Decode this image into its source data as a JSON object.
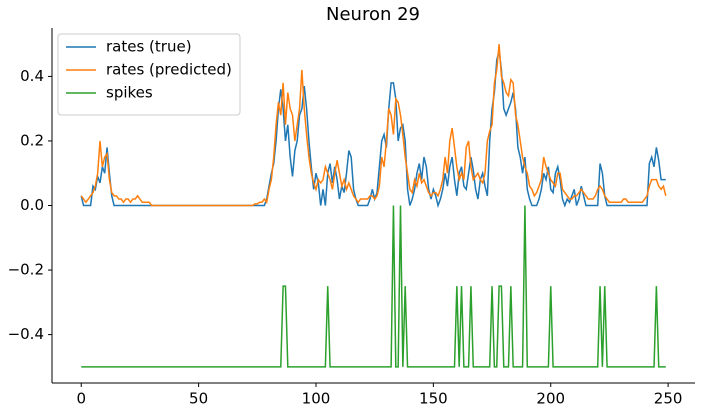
{
  "chart_data": {
    "type": "line",
    "title": "Neuron 29",
    "x": [
      0,
      1,
      2,
      3,
      4,
      5,
      6,
      7,
      8,
      9,
      10,
      11,
      12,
      13,
      14,
      15,
      16,
      17,
      18,
      19,
      20,
      21,
      22,
      23,
      24,
      25,
      26,
      27,
      28,
      29,
      30,
      31,
      32,
      33,
      34,
      35,
      36,
      37,
      38,
      39,
      40,
      41,
      42,
      43,
      44,
      45,
      46,
      47,
      48,
      49,
      50,
      51,
      52,
      53,
      54,
      55,
      56,
      57,
      58,
      59,
      60,
      61,
      62,
      63,
      64,
      65,
      66,
      67,
      68,
      69,
      70,
      71,
      72,
      73,
      74,
      75,
      76,
      77,
      78,
      79,
      80,
      81,
      82,
      83,
      84,
      85,
      86,
      87,
      88,
      89,
      90,
      91,
      92,
      93,
      94,
      95,
      96,
      97,
      98,
      99,
      100,
      101,
      102,
      103,
      104,
      105,
      106,
      107,
      108,
      109,
      110,
      111,
      112,
      113,
      114,
      115,
      116,
      117,
      118,
      119,
      120,
      121,
      122,
      123,
      124,
      125,
      126,
      127,
      128,
      129,
      130,
      131,
      132,
      133,
      134,
      135,
      136,
      137,
      138,
      139,
      140,
      141,
      142,
      143,
      144,
      145,
      146,
      147,
      148,
      149,
      150,
      151,
      152,
      153,
      154,
      155,
      156,
      157,
      158,
      159,
      160,
      161,
      162,
      163,
      164,
      165,
      166,
      167,
      168,
      169,
      170,
      171,
      172,
      173,
      174,
      175,
      176,
      177,
      178,
      179,
      180,
      181,
      182,
      183,
      184,
      185,
      186,
      187,
      188,
      189,
      190,
      191,
      192,
      193,
      194,
      195,
      196,
      197,
      198,
      199,
      200,
      201,
      202,
      203,
      204,
      205,
      206,
      207,
      208,
      209,
      210,
      211,
      212,
      213,
      214,
      215,
      216,
      217,
      218,
      219,
      220,
      221,
      222,
      223,
      224,
      225,
      226,
      227,
      228,
      229,
      230,
      231,
      232,
      233,
      234,
      235,
      236,
      237,
      238,
      239,
      240,
      241,
      242,
      243,
      244,
      245,
      246,
      247,
      248,
      249
    ],
    "series": [
      {
        "name": "rates (true)",
        "color": "#1f77b4",
        "values": [
          0.03,
          0,
          0,
          0,
          0,
          0.06,
          0.05,
          0.09,
          0.07,
          0.12,
          0.1,
          0.18,
          0.1,
          0.03,
          0,
          0,
          0,
          0,
          0,
          0,
          0,
          0,
          0,
          0,
          0,
          0,
          0,
          0,
          0,
          0,
          0,
          0,
          0,
          0,
          0,
          0,
          0,
          0,
          0,
          0,
          0,
          0,
          0,
          0,
          0,
          0,
          0,
          0,
          0,
          0,
          0,
          0,
          0,
          0,
          0,
          0,
          0,
          0,
          0,
          0,
          0,
          0,
          0,
          0,
          0,
          0,
          0,
          0,
          0,
          0,
          0,
          0,
          0,
          0,
          0,
          0,
          0,
          0,
          0,
          0.02,
          0.06,
          0.1,
          0.13,
          0.2,
          0.3,
          0.36,
          0.3,
          0.2,
          0.25,
          0.15,
          0.09,
          0.17,
          0.2,
          0.28,
          0.3,
          0.37,
          0.3,
          0.2,
          0.12,
          0.05,
          0.1,
          0.07,
          0,
          0.05,
          0,
          0.1,
          0.13,
          0.07,
          0.12,
          0.08,
          0.02,
          0.06,
          0.04,
          0.1,
          0.17,
          0.15,
          0.05,
          0.02,
          0,
          0,
          0,
          0,
          0,
          0.02,
          0.05,
          0.02,
          0.04,
          0.12,
          0.2,
          0.22,
          0.18,
          0.3,
          0.38,
          0.38,
          0.33,
          0.2,
          0.24,
          0.25,
          0.2,
          0.05,
          0,
          0.02,
          0.05,
          0.1,
          0.13,
          0.08,
          0.15,
          0.12,
          0.05,
          0.02,
          0.05,
          0.03,
          0,
          0.02,
          0.05,
          0.1,
          0.06,
          0.12,
          0.15,
          0.08,
          0.03,
          0.1,
          0.12,
          0.06,
          0.05,
          0.1,
          0.15,
          0.11,
          0.05,
          0.02,
          0.08,
          0.1,
          0.06,
          0.03,
          0.2,
          0.3,
          0.35,
          0.45,
          0.48,
          0.42,
          0.3,
          0.28,
          0.3,
          0.32,
          0.35,
          0.3,
          0.18,
          0.15,
          0.1,
          0.15,
          0.05,
          0.02,
          0,
          0,
          0,
          0.02,
          0.05,
          0.1,
          0.08,
          0.12,
          0.05,
          0.04,
          0.1,
          0.12,
          0.08,
          0.02,
          0,
          0.02,
          0.01,
          0.03,
          0.05,
          0,
          0.02,
          0.06,
          0.03,
          0,
          0,
          0,
          0,
          0,
          0,
          0.13,
          0.1,
          0.03,
          0,
          0,
          0,
          0,
          0,
          0,
          0,
          0,
          0,
          0,
          0,
          0,
          0,
          0,
          0,
          0,
          0,
          0,
          0.13,
          0.15,
          0.12,
          0.18,
          0.14,
          0.08,
          0.08,
          0.08
        ]
      },
      {
        "name": "rates (predicted)",
        "color": "#ff7f0e",
        "values": [
          0.03,
          0.02,
          0.01,
          0.02,
          0.03,
          0.04,
          0.06,
          0.1,
          0.2,
          0.12,
          0.15,
          0.16,
          0.08,
          0.04,
          0.03,
          0.03,
          0.02,
          0.02,
          0.01,
          0.02,
          0.02,
          0.01,
          0.02,
          0.02,
          0.03,
          0.02,
          0.01,
          0.01,
          0.01,
          0.01,
          0,
          0,
          0,
          0,
          0,
          0,
          0,
          0,
          0,
          0,
          0,
          0,
          0,
          0,
          0,
          0,
          0,
          0,
          0,
          0,
          0,
          0,
          0,
          0,
          0,
          0,
          0,
          0,
          0,
          0,
          0,
          0,
          0,
          0,
          0,
          0,
          0,
          0,
          0,
          0,
          0,
          0,
          0,
          0,
          0.005,
          0.005,
          0.01,
          0.01,
          0.02,
          0.01,
          0.05,
          0.08,
          0.15,
          0.25,
          0.32,
          0.28,
          0.38,
          0.25,
          0.35,
          0.3,
          0.28,
          0.2,
          0.25,
          0.3,
          0.42,
          0.3,
          0.22,
          0.15,
          0.1,
          0.07,
          0.05,
          0.08,
          0.07,
          0.08,
          0.12,
          0.1,
          0.08,
          0.05,
          0.1,
          0.14,
          0.1,
          0.06,
          0.08,
          0.05,
          0.07,
          0.05,
          0.03,
          0.02,
          0.01,
          0.02,
          0.02,
          0.02,
          0.02,
          0.03,
          0.03,
          0.02,
          0.03,
          0.06,
          0.15,
          0.12,
          0.2,
          0.3,
          0.28,
          0.22,
          0.33,
          0.32,
          0.28,
          0.22,
          0.15,
          0.1,
          0.05,
          0.04,
          0.08,
          0.06,
          0.1,
          0.07,
          0.08,
          0.06,
          0.04,
          0.03,
          0.04,
          0.04,
          0.03,
          0.05,
          0.08,
          0.15,
          0.1,
          0.2,
          0.24,
          0.18,
          0.12,
          0.08,
          0.1,
          0.08,
          0.18,
          0.2,
          0.12,
          0.08,
          0.09,
          0.1,
          0.08,
          0.07,
          0.1,
          0.2,
          0.23,
          0.25,
          0.38,
          0.42,
          0.5,
          0.4,
          0.38,
          0.35,
          0.34,
          0.39,
          0.38,
          0.28,
          0.25,
          0.2,
          0.15,
          0.12,
          0.1,
          0.06,
          0.05,
          0.03,
          0.04,
          0.06,
          0.08,
          0.15,
          0.12,
          0.1,
          0.08,
          0.07,
          0.06,
          0.1,
          0.1,
          0.05,
          0.04,
          0.03,
          0.02,
          0.02,
          0.03,
          0.03,
          0.04,
          0.05,
          0.04,
          0.03,
          0.02,
          0.02,
          0.02,
          0.03,
          0.05,
          0.06,
          0.05,
          0.03,
          0.02,
          0.01,
          0.01,
          0.01,
          0.01,
          0.01,
          0.01,
          0.02,
          0.02,
          0.01,
          0.01,
          0.01,
          0.01,
          0.01,
          0.01,
          0.01,
          0.02,
          0.03,
          0.06,
          0.08,
          0.08,
          0.08,
          0.06,
          0.05,
          0.06,
          0.03
        ]
      },
      {
        "name": "spikes",
        "color": "#2ca02c",
        "values": [
          -0.5,
          -0.5,
          -0.5,
          -0.5,
          -0.5,
          -0.5,
          -0.5,
          -0.5,
          -0.5,
          -0.5,
          -0.5,
          -0.5,
          -0.5,
          -0.5,
          -0.5,
          -0.5,
          -0.5,
          -0.5,
          -0.5,
          -0.5,
          -0.5,
          -0.5,
          -0.5,
          -0.5,
          -0.5,
          -0.5,
          -0.5,
          -0.5,
          -0.5,
          -0.5,
          -0.5,
          -0.5,
          -0.5,
          -0.5,
          -0.5,
          -0.5,
          -0.5,
          -0.5,
          -0.5,
          -0.5,
          -0.5,
          -0.5,
          -0.5,
          -0.5,
          -0.5,
          -0.5,
          -0.5,
          -0.5,
          -0.5,
          -0.5,
          -0.5,
          -0.5,
          -0.5,
          -0.5,
          -0.5,
          -0.5,
          -0.5,
          -0.5,
          -0.5,
          -0.5,
          -0.5,
          -0.5,
          -0.5,
          -0.5,
          -0.5,
          -0.5,
          -0.5,
          -0.5,
          -0.5,
          -0.5,
          -0.5,
          -0.5,
          -0.5,
          -0.5,
          -0.5,
          -0.5,
          -0.5,
          -0.5,
          -0.5,
          -0.5,
          -0.5,
          -0.5,
          -0.5,
          -0.5,
          -0.5,
          -0.5,
          -0.25,
          -0.25,
          -0.5,
          -0.5,
          -0.5,
          -0.5,
          -0.5,
          -0.5,
          -0.5,
          -0.5,
          -0.5,
          -0.5,
          -0.5,
          -0.5,
          -0.5,
          -0.5,
          -0.5,
          -0.5,
          -0.5,
          -0.25,
          -0.5,
          -0.5,
          -0.5,
          -0.5,
          -0.5,
          -0.5,
          -0.5,
          -0.5,
          -0.5,
          -0.5,
          -0.5,
          -0.5,
          -0.5,
          -0.5,
          -0.5,
          -0.5,
          -0.5,
          -0.5,
          -0.5,
          -0.5,
          -0.5,
          -0.5,
          -0.5,
          -0.5,
          -0.5,
          -0.5,
          -0.5,
          0,
          -0.5,
          -0.5,
          0,
          -0.5,
          -0.25,
          -0.5,
          -0.5,
          -0.5,
          -0.5,
          -0.5,
          -0.5,
          -0.5,
          -0.5,
          -0.5,
          -0.5,
          -0.5,
          -0.5,
          -0.5,
          -0.5,
          -0.5,
          -0.5,
          -0.5,
          -0.5,
          -0.5,
          -0.5,
          -0.5,
          -0.25,
          -0.5,
          -0.25,
          -0.5,
          -0.5,
          -0.5,
          -0.25,
          -0.5,
          -0.5,
          -0.5,
          -0.5,
          -0.5,
          -0.5,
          -0.5,
          -0.5,
          -0.25,
          -0.5,
          -0.5,
          -0.25,
          -0.25,
          -0.5,
          -0.5,
          -0.5,
          -0.25,
          -0.5,
          -0.5,
          -0.5,
          -0.5,
          -0.5,
          0,
          -0.5,
          -0.5,
          -0.5,
          -0.5,
          -0.5,
          -0.5,
          -0.5,
          -0.5,
          -0.5,
          -0.5,
          -0.25,
          -0.5,
          -0.5,
          -0.5,
          -0.5,
          -0.5,
          -0.5,
          -0.5,
          -0.5,
          -0.5,
          -0.5,
          -0.5,
          -0.5,
          -0.5,
          -0.5,
          -0.5,
          -0.5,
          -0.5,
          -0.5,
          -0.5,
          -0.5,
          -0.25,
          -0.5,
          -0.25,
          -0.5,
          -0.5,
          -0.5,
          -0.5,
          -0.5,
          -0.5,
          -0.5,
          -0.5,
          -0.5,
          -0.5,
          -0.5,
          -0.5,
          -0.5,
          -0.5,
          -0.5,
          -0.5,
          -0.5,
          -0.5,
          -0.5,
          -0.5,
          -0.5,
          -0.25,
          -0.5,
          -0.5,
          -0.5,
          -0.5
        ]
      }
    ],
    "xlim": [
      -12.45,
      261.45
    ],
    "xticks": [
      0,
      50,
      100,
      150,
      200,
      250
    ],
    "ylim": [
      -0.55,
      0.55
    ],
    "yticks": [
      {
        "value": -0.4,
        "label": "−0.4"
      },
      {
        "value": -0.2,
        "label": "−0.2"
      },
      {
        "value": 0,
        "label": "0.0"
      },
      {
        "value": 0.2,
        "label": "0.2"
      },
      {
        "value": 0.4,
        "label": "0.4"
      }
    ],
    "legend": "upper left",
    "grid": false
  }
}
